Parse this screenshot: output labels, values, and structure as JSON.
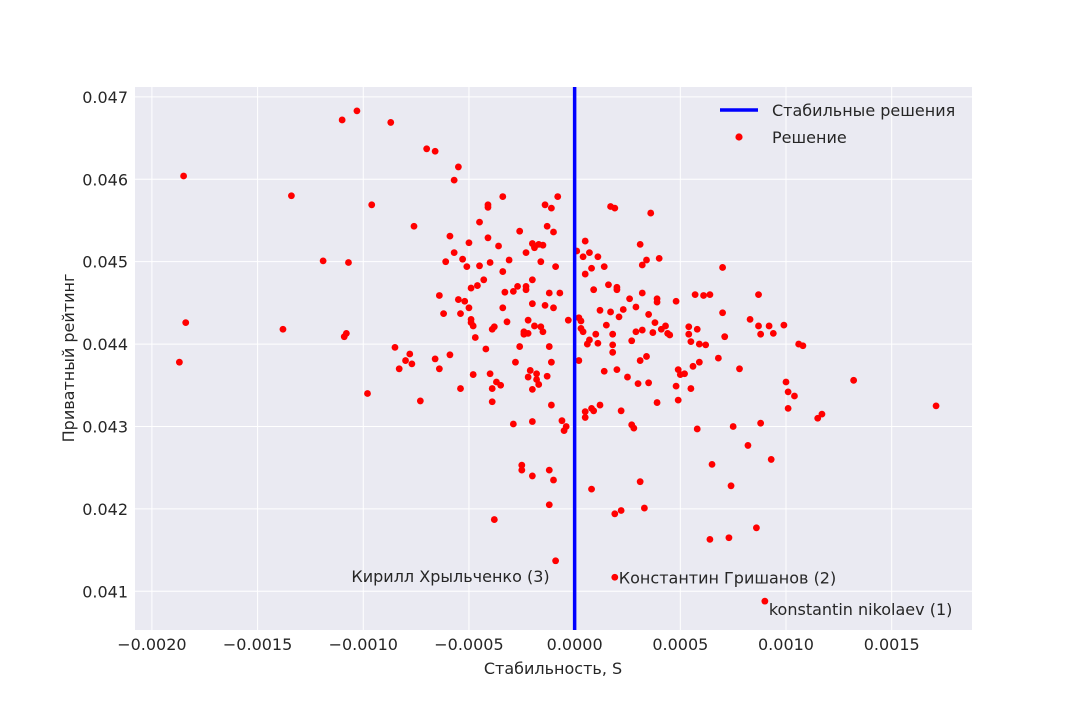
{
  "chart_data": {
    "type": "scatter",
    "xlabel": "Стабильность, S",
    "ylabel": "Приватный рейтинг",
    "xlim": [
      -0.00208,
      0.00188
    ],
    "ylim": [
      0.04053,
      0.04712
    ],
    "x_ticks": [
      -0.002,
      -0.0015,
      -0.001,
      -0.0005,
      0.0,
      0.0005,
      0.001,
      0.0015
    ],
    "x_tick_labels": [
      "−0.0020",
      "−0.0015",
      "−0.0010",
      "−0.0005",
      "0.0000",
      "0.0005",
      "0.0010",
      "0.0015"
    ],
    "y_ticks": [
      0.041,
      0.042,
      0.043,
      0.044,
      0.045,
      0.046,
      0.047
    ],
    "y_tick_labels": [
      "0.041",
      "0.042",
      "0.043",
      "0.044",
      "0.045",
      "0.046",
      "0.047"
    ],
    "grid": true,
    "legend_position": "top-right",
    "legend": [
      {
        "label": "Стабильные решения",
        "kind": "line",
        "color": "#0000ff"
      },
      {
        "label": "Решение",
        "kind": "marker",
        "color": "#ff0000"
      }
    ],
    "vline": {
      "x": 0.0,
      "color": "#0000ff",
      "name": "Стабильные решения"
    },
    "series": [
      {
        "name": "Решение",
        "color": "#ff0000",
        "points": [
          [
            -0.00187,
            0.04378
          ],
          [
            -0.00185,
            0.04604
          ],
          [
            -0.00184,
            0.04426
          ],
          [
            -0.00138,
            0.04418
          ],
          [
            -0.00134,
            0.0458
          ],
          [
            -0.00119,
            0.04501
          ],
          [
            -0.0011,
            0.04672
          ],
          [
            -0.00109,
            0.04409
          ],
          [
            -0.00108,
            0.04413
          ],
          [
            -0.00107,
            0.04499
          ],
          [
            -0.00103,
            0.04683
          ],
          [
            -0.00098,
            0.0434
          ],
          [
            -0.00096,
            0.04569
          ],
          [
            -0.00087,
            0.04669
          ],
          [
            -0.00085,
            0.04396
          ],
          [
            -0.00083,
            0.0437
          ],
          [
            -0.0008,
            0.0438
          ],
          [
            -0.00078,
            0.04388
          ],
          [
            -0.00077,
            0.04376
          ],
          [
            -0.00076,
            0.04543
          ],
          [
            -0.00073,
            0.04331
          ],
          [
            -0.0007,
            0.04637
          ],
          [
            -0.00066,
            0.04634
          ],
          [
            -0.00066,
            0.04382
          ],
          [
            -0.00064,
            0.04459
          ],
          [
            -0.00064,
            0.0437
          ],
          [
            -0.00062,
            0.04437
          ],
          [
            -0.00061,
            0.045
          ],
          [
            -0.00059,
            0.04531
          ],
          [
            -0.00059,
            0.04387
          ],
          [
            -0.00057,
            0.04511
          ],
          [
            -0.00057,
            0.04599
          ],
          [
            -0.00055,
            0.04615
          ],
          [
            -0.00055,
            0.04454
          ],
          [
            -0.00054,
            0.04437
          ],
          [
            -0.00054,
            0.04346
          ],
          [
            -0.00053,
            0.04503
          ],
          [
            -0.00052,
            0.04452
          ],
          [
            -0.00051,
            0.04494
          ],
          [
            -0.0005,
            0.04444
          ],
          [
            -0.0005,
            0.04523
          ],
          [
            -0.00049,
            0.04426
          ],
          [
            -0.00049,
            0.0443
          ],
          [
            -0.00049,
            0.04468
          ],
          [
            -0.00048,
            0.04363
          ],
          [
            -0.00048,
            0.04422
          ],
          [
            -0.00047,
            0.04408
          ],
          [
            -0.00046,
            0.04471
          ],
          [
            -0.00045,
            0.04495
          ],
          [
            -0.00045,
            0.04548
          ],
          [
            -0.00043,
            0.04478
          ],
          [
            -0.00042,
            0.04394
          ],
          [
            -0.00041,
            0.04569
          ],
          [
            -0.00041,
            0.04529
          ],
          [
            -0.00041,
            0.04566
          ],
          [
            -0.0004,
            0.04499
          ],
          [
            -0.0004,
            0.04364
          ],
          [
            -0.00039,
            0.04346
          ],
          [
            -0.00039,
            0.04418
          ],
          [
            -0.00039,
            0.0433
          ],
          [
            -0.00038,
            0.04187
          ],
          [
            -0.00038,
            0.04421
          ],
          [
            -0.00037,
            0.04354
          ],
          [
            -0.00036,
            0.04519
          ],
          [
            -0.00035,
            0.0435
          ],
          [
            -0.00034,
            0.04579
          ],
          [
            -0.00034,
            0.04444
          ],
          [
            -0.00034,
            0.04488
          ],
          [
            -0.00033,
            0.04463
          ],
          [
            -0.00032,
            0.04427
          ],
          [
            -0.00031,
            0.04502
          ],
          [
            -0.00029,
            0.04464
          ],
          [
            -0.00029,
            0.04303
          ],
          [
            -0.00028,
            0.04378
          ],
          [
            -0.00027,
            0.0447
          ],
          [
            -0.00026,
            0.04537
          ],
          [
            -0.00026,
            0.04397
          ],
          [
            -0.00025,
            0.04253
          ],
          [
            -0.00025,
            0.04247
          ],
          [
            -0.00024,
            0.04415
          ],
          [
            -0.00024,
            0.04412
          ],
          [
            -0.00023,
            0.04511
          ],
          [
            -0.00023,
            0.0447
          ],
          [
            -0.00023,
            0.04466
          ],
          [
            -0.00022,
            0.04429
          ],
          [
            -0.00022,
            0.0436
          ],
          [
            -0.00022,
            0.04413
          ],
          [
            -0.00021,
            0.04368
          ],
          [
            -0.0002,
            0.0424
          ],
          [
            -0.0002,
            0.04478
          ],
          [
            -0.0002,
            0.04522
          ],
          [
            -0.0002,
            0.04306
          ],
          [
            -0.0002,
            0.04449
          ],
          [
            -0.0002,
            0.04345
          ],
          [
            -0.00019,
            0.04517
          ],
          [
            -0.00019,
            0.04422
          ],
          [
            -0.00018,
            0.04364
          ],
          [
            -0.00018,
            0.04357
          ],
          [
            -0.00017,
            0.04351
          ],
          [
            -0.00017,
            0.04521
          ],
          [
            -0.00016,
            0.045
          ],
          [
            -0.00016,
            0.04421
          ],
          [
            -0.00015,
            0.04415
          ],
          [
            -0.00015,
            0.0452
          ],
          [
            -0.00014,
            0.04447
          ],
          [
            -0.00014,
            0.04569
          ],
          [
            -0.00013,
            0.04361
          ],
          [
            -0.00013,
            0.04543
          ],
          [
            -0.00012,
            0.04247
          ],
          [
            -0.00012,
            0.04205
          ],
          [
            -0.00012,
            0.04462
          ],
          [
            -0.00012,
            0.04397
          ],
          [
            -0.00011,
            0.04565
          ],
          [
            -0.00011,
            0.04378
          ],
          [
            -0.00011,
            0.04326
          ],
          [
            -0.0001,
            0.04444
          ],
          [
            -0.0001,
            0.04536
          ],
          [
            -0.0001,
            0.04235
          ],
          [
            -9e-05,
            0.04137
          ],
          [
            -9e-05,
            0.04494
          ],
          [
            -8e-05,
            0.04579
          ],
          [
            -7e-05,
            0.04462
          ],
          [
            -6e-05,
            0.04307
          ],
          [
            -5e-05,
            0.04295
          ],
          [
            -4e-05,
            0.043
          ],
          [
            -3e-05,
            0.04429
          ],
          [
            1e-05,
            0.04513
          ],
          [
            2e-05,
            0.04432
          ],
          [
            2e-05,
            0.0438
          ],
          [
            3e-05,
            0.04428
          ],
          [
            3e-05,
            0.04419
          ],
          [
            4e-05,
            0.04415
          ],
          [
            4e-05,
            0.04506
          ],
          [
            5e-05,
            0.04485
          ],
          [
            5e-05,
            0.04525
          ],
          [
            5e-05,
            0.04311
          ],
          [
            5e-05,
            0.04318
          ],
          [
            6e-05,
            0.044
          ],
          [
            7e-05,
            0.04405
          ],
          [
            7e-05,
            0.04511
          ],
          [
            8e-05,
            0.04492
          ],
          [
            8e-05,
            0.04322
          ],
          [
            8e-05,
            0.04224
          ],
          [
            9e-05,
            0.04319
          ],
          [
            9e-05,
            0.04466
          ],
          [
            0.0001,
            0.04412
          ],
          [
            0.00011,
            0.04506
          ],
          [
            0.00011,
            0.04401
          ],
          [
            0.00012,
            0.04441
          ],
          [
            0.00012,
            0.04326
          ],
          [
            0.00014,
            0.04367
          ],
          [
            0.00014,
            0.04494
          ],
          [
            0.00015,
            0.04423
          ],
          [
            0.00016,
            0.04472
          ],
          [
            0.00017,
            0.04567
          ],
          [
            0.00017,
            0.04439
          ],
          [
            0.00018,
            0.0439
          ],
          [
            0.00018,
            0.04412
          ],
          [
            0.00018,
            0.04399
          ],
          [
            0.00019,
            0.04194
          ],
          [
            0.00019,
            0.04565
          ],
          [
            0.00019,
            0.04117
          ],
          [
            0.0002,
            0.04466
          ],
          [
            0.0002,
            0.04469
          ],
          [
            0.0002,
            0.04369
          ],
          [
            0.00021,
            0.04433
          ],
          [
            0.00022,
            0.04319
          ],
          [
            0.00022,
            0.04198
          ],
          [
            0.00023,
            0.04442
          ],
          [
            0.00025,
            0.0436
          ],
          [
            0.00026,
            0.04455
          ],
          [
            0.00027,
            0.04302
          ],
          [
            0.00027,
            0.04404
          ],
          [
            0.00028,
            0.04298
          ],
          [
            0.00029,
            0.04415
          ],
          [
            0.00029,
            0.04445
          ],
          [
            0.0003,
            0.04352
          ],
          [
            0.00031,
            0.04233
          ],
          [
            0.00031,
            0.04521
          ],
          [
            0.00031,
            0.0438
          ],
          [
            0.00032,
            0.04417
          ],
          [
            0.00032,
            0.04462
          ],
          [
            0.00032,
            0.04496
          ],
          [
            0.00033,
            0.04201
          ],
          [
            0.00034,
            0.04385
          ],
          [
            0.00034,
            0.04502
          ],
          [
            0.00035,
            0.04436
          ],
          [
            0.00035,
            0.04353
          ],
          [
            0.00036,
            0.04559
          ],
          [
            0.00037,
            0.04414
          ],
          [
            0.00038,
            0.04426
          ],
          [
            0.00039,
            0.04329
          ],
          [
            0.00039,
            0.04451
          ],
          [
            0.00039,
            0.04455
          ],
          [
            0.0004,
            0.04504
          ],
          [
            0.00041,
            0.04418
          ],
          [
            0.00043,
            0.04422
          ],
          [
            0.00044,
            0.04413
          ],
          [
            0.00045,
            0.04411
          ],
          [
            0.00048,
            0.04452
          ],
          [
            0.00048,
            0.04349
          ],
          [
            0.00049,
            0.04332
          ],
          [
            0.00049,
            0.04369
          ],
          [
            0.0005,
            0.04363
          ],
          [
            0.00052,
            0.04364
          ],
          [
            0.00054,
            0.04421
          ],
          [
            0.00054,
            0.04412
          ],
          [
            0.00055,
            0.04346
          ],
          [
            0.00055,
            0.04403
          ],
          [
            0.00056,
            0.04373
          ],
          [
            0.00057,
            0.0446
          ],
          [
            0.00058,
            0.04297
          ],
          [
            0.00058,
            0.04418
          ],
          [
            0.00059,
            0.04378
          ],
          [
            0.00059,
            0.044
          ],
          [
            0.00061,
            0.04459
          ],
          [
            0.00062,
            0.04399
          ],
          [
            0.00064,
            0.04163
          ],
          [
            0.00064,
            0.0446
          ],
          [
            0.00065,
            0.04254
          ],
          [
            0.00068,
            0.04383
          ],
          [
            0.0007,
            0.04493
          ],
          [
            0.0007,
            0.04438
          ],
          [
            0.00071,
            0.04409
          ],
          [
            0.00073,
            0.04165
          ],
          [
            0.00074,
            0.04228
          ],
          [
            0.00075,
            0.043
          ],
          [
            0.00078,
            0.0437
          ],
          [
            0.00082,
            0.04277
          ],
          [
            0.00083,
            0.0443
          ],
          [
            0.00086,
            0.04177
          ],
          [
            0.00087,
            0.04422
          ],
          [
            0.00087,
            0.0446
          ],
          [
            0.00088,
            0.04412
          ],
          [
            0.00088,
            0.04304
          ],
          [
            0.0009,
            0.04088
          ],
          [
            0.00092,
            0.04422
          ],
          [
            0.00093,
            0.0426
          ],
          [
            0.00094,
            0.04413
          ],
          [
            0.00099,
            0.04423
          ],
          [
            0.001,
            0.04354
          ],
          [
            0.00101,
            0.04322
          ],
          [
            0.00101,
            0.04342
          ],
          [
            0.00104,
            0.04337
          ],
          [
            0.00106,
            0.044
          ],
          [
            0.00108,
            0.04398
          ],
          [
            0.00115,
            0.0431
          ],
          [
            0.00117,
            0.04315
          ],
          [
            0.00132,
            0.04356
          ],
          [
            0.00171,
            0.04325
          ]
        ]
      }
    ],
    "annotations": [
      {
        "text": "Кирилл Хрыльченко (3)",
        "x": -9e-05,
        "y": 0.04137,
        "side": "left"
      },
      {
        "text": "Константин Гришанов (2)",
        "x": 0.00019,
        "y": 0.04117,
        "side": "right"
      },
      {
        "text": "konstantin nikolaev (1)",
        "x": 0.0009,
        "y": 0.04088,
        "side": "right-below"
      }
    ]
  }
}
